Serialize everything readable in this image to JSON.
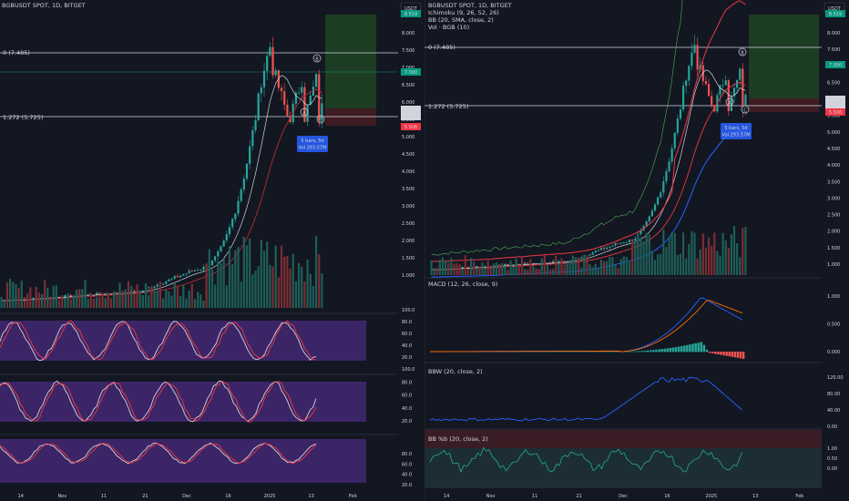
{
  "left_panel": {
    "title": "BGBUSDT SPOT, 1D, BITGET",
    "currency": "USDT",
    "fib_level_0": "0 (7.485)",
    "fib_level_1272": "1.272 (5.725)",
    "wave_labels": [
      "A",
      "B",
      "C"
    ],
    "bars_box": {
      "line1": "5 bars, 5d",
      "line2": "Vol 293.57M"
    },
    "price_ticks": [
      "8.000",
      "7.500",
      "7.000",
      "6.500",
      "6.000",
      "5.500",
      "5.000",
      "4.500",
      "4.000",
      "3.500",
      "3.000",
      "2.500",
      "2.000",
      "1.500",
      "1.000"
    ],
    "price_badges": [
      {
        "text": "8.519",
        "color": "#089981"
      },
      {
        "text": "7.000",
        "color": "#089981"
      },
      {
        "text": "6.100",
        "color": "#d1d4dc"
      },
      {
        "text": "5.899",
        "color": "#d1d4dc"
      },
      {
        "text": "5.506",
        "color": "#f23645"
      }
    ],
    "osc1_ticks": [
      "100.0",
      "80.0",
      "60.0",
      "40.0",
      "20.0"
    ],
    "osc2_ticks": [
      "100.0",
      "80.0",
      "60.0",
      "40.0",
      "20.0"
    ],
    "osc3_ticks": [
      "80.0",
      "60.0",
      "40.0",
      "20.0"
    ],
    "time_ticks": [
      "14",
      "Nov",
      "11",
      "21",
      "Dec",
      "16",
      "2025",
      "13",
      "Feb"
    ]
  },
  "right_panel": {
    "title": "BGBUSDT SPOT, 1D, BITGET",
    "legend": [
      "Ichimoku (9, 26, 52, 26)",
      "BB (20, SMA, close, 2)",
      "Vol · BGB (10)"
    ],
    "currency": "USDT",
    "fib_level_0": "0 (7.485)",
    "fib_level_1272": "1.272 (5.725)",
    "wave_labels": [
      "A",
      "B",
      "C"
    ],
    "bars_box": {
      "line1": "5 bars, 5d",
      "line2": "Vol 293.57M"
    },
    "price_ticks": [
      "8.000",
      "7.500",
      "7.000",
      "6.500",
      "6.000",
      "5.500",
      "5.000",
      "4.500",
      "4.000",
      "3.500",
      "3.000",
      "2.500",
      "2.000",
      "1.500",
      "1.000"
    ],
    "price_badges": [
      {
        "text": "8.519",
        "color": "#089981"
      },
      {
        "text": "7.000",
        "color": "#089981"
      },
      {
        "text": "6.100",
        "color": "#d1d4dc"
      },
      {
        "text": "5.899",
        "color": "#d1d4dc"
      },
      {
        "text": "5.506",
        "color": "#f23645"
      }
    ],
    "macd": {
      "label": "MACD (12, 26, close, 9)",
      "ticks": [
        "1.000",
        "0.500",
        "0.000"
      ]
    },
    "bbw": {
      "label": "BBW (20, close, 2)",
      "ticks": [
        "120.00",
        "80.00",
        "40.00",
        "0.00"
      ]
    },
    "bbp": {
      "label": "BB %b (20, close, 2)",
      "ticks": [
        "1.00",
        "0.50",
        "0.00"
      ]
    },
    "time_ticks": [
      "14",
      "Nov",
      "11",
      "21",
      "Dec",
      "16",
      "2025",
      "13",
      "Feb"
    ]
  },
  "colors": {
    "background": "#131722",
    "up": "#26a69a",
    "down": "#ef5350",
    "osc_bg": "#4a2a78",
    "fib_line": "#d1d4dc",
    "target_box": "#1e4620",
    "stop_box": "#5a1e24"
  }
}
